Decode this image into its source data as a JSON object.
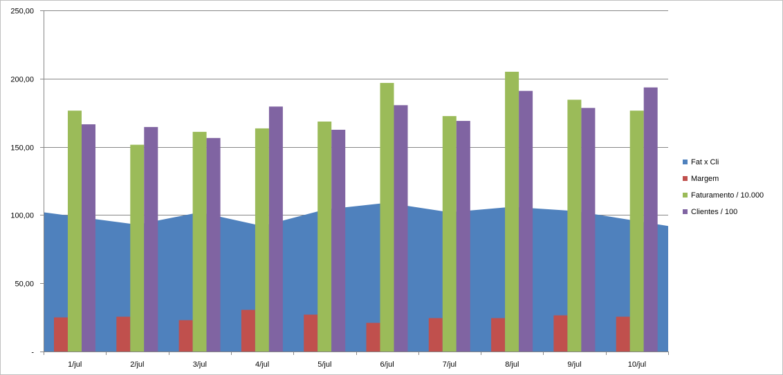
{
  "chart_data": {
    "type": "bar",
    "title": "",
    "xlabel": "",
    "ylabel": "",
    "ylim": [
      0,
      250
    ],
    "y_ticks": [
      "-",
      "50,00",
      "100,00",
      "150,00",
      "200,00",
      "250,00"
    ],
    "categories": [
      "1/jul",
      "2/jul",
      "3/jul",
      "4/jul",
      "5/jul",
      "6/jul",
      "7/jul",
      "8/jul",
      "9/jul",
      "10/jul"
    ],
    "grid": "horizontal",
    "legend_position": "right",
    "series": [
      {
        "name": "Fat x Cli",
        "kind": "area",
        "color": "#4f81bd",
        "values": [
          102,
          93,
          102,
          92,
          104,
          109,
          102,
          106,
          103,
          92
        ]
      },
      {
        "name": "Margem",
        "kind": "bar",
        "color": "#c0504d",
        "values": [
          25,
          25.5,
          23,
          30.5,
          27,
          21,
          24.5,
          24.5,
          26.5,
          25.5
        ]
      },
      {
        "name": "Faturamento / 10.000",
        "kind": "bar",
        "color": "#9bbb59",
        "values": [
          176.5,
          151.5,
          161,
          163.5,
          168.5,
          196.8,
          172.5,
          205,
          184.5,
          176.5
        ]
      },
      {
        "name": "Clientes / 100",
        "kind": "bar",
        "color": "#8064a2",
        "values": [
          166.5,
          164.5,
          156.5,
          179.5,
          162.5,
          180.5,
          169,
          191,
          178.5,
          193.5
        ]
      }
    ]
  }
}
